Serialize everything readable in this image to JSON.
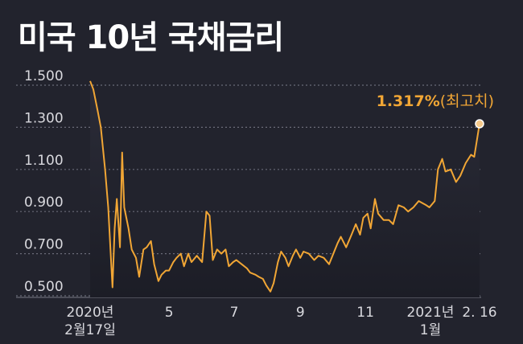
{
  "title": "미국 10년 국채금리",
  "chart_data": {
    "type": "line",
    "title": "미국 10년 국채금리",
    "ylim": [
      0.5,
      1.5
    ],
    "yticks": [
      {
        "value": 1.5,
        "label": "1.500"
      },
      {
        "value": 1.3,
        "label": "1.300"
      },
      {
        "value": 1.1,
        "label": "1.100"
      },
      {
        "value": 0.9,
        "label": "0.900"
      },
      {
        "value": 0.7,
        "label": "0.700"
      },
      {
        "value": 0.5,
        "label": "0.500"
      }
    ],
    "xlim": [
      "2020-02-17",
      "2021-02-16"
    ],
    "xticks": [
      {
        "date": "2020-02-17",
        "label": [
          "2020년",
          "2월17일"
        ]
      },
      {
        "date": "2020-05-01",
        "label": [
          "5"
        ]
      },
      {
        "date": "2020-07-01",
        "label": [
          "7"
        ]
      },
      {
        "date": "2020-09-01",
        "label": [
          "9"
        ]
      },
      {
        "date": "2020-11-01",
        "label": [
          "11"
        ]
      },
      {
        "date": "2021-01-01",
        "label": [
          "2021년",
          "1월"
        ]
      },
      {
        "date": "2021-02-16",
        "label": [
          "2. 16"
        ]
      }
    ],
    "grid": true,
    "series": [
      {
        "color": "#f1a635",
        "points": [
          [
            "2020-02-17",
            1.52
          ],
          [
            "2020-02-20",
            1.48
          ],
          [
            "2020-02-24",
            1.38
          ],
          [
            "2020-02-27",
            1.3
          ],
          [
            "2020-03-02",
            1.1
          ],
          [
            "2020-03-05",
            0.92
          ],
          [
            "2020-03-09",
            0.54
          ],
          [
            "2020-03-11",
            0.82
          ],
          [
            "2020-03-13",
            0.96
          ],
          [
            "2020-03-16",
            0.73
          ],
          [
            "2020-03-18",
            1.18
          ],
          [
            "2020-03-20",
            0.92
          ],
          [
            "2020-03-24",
            0.82
          ],
          [
            "2020-03-27",
            0.72
          ],
          [
            "2020-03-31",
            0.68
          ],
          [
            "2020-04-03",
            0.59
          ],
          [
            "2020-04-07",
            0.72
          ],
          [
            "2020-04-10",
            0.73
          ],
          [
            "2020-04-14",
            0.76
          ],
          [
            "2020-04-17",
            0.65
          ],
          [
            "2020-04-21",
            0.57
          ],
          [
            "2020-04-24",
            0.6
          ],
          [
            "2020-04-28",
            0.62
          ],
          [
            "2020-05-01",
            0.62
          ],
          [
            "2020-05-05",
            0.66
          ],
          [
            "2020-05-08",
            0.68
          ],
          [
            "2020-05-12",
            0.7
          ],
          [
            "2020-05-15",
            0.64
          ],
          [
            "2020-05-19",
            0.7
          ],
          [
            "2020-05-22",
            0.66
          ],
          [
            "2020-05-27",
            0.69
          ],
          [
            "2020-06-01",
            0.66
          ],
          [
            "2020-06-05",
            0.9
          ],
          [
            "2020-06-08",
            0.88
          ],
          [
            "2020-06-11",
            0.67
          ],
          [
            "2020-06-15",
            0.72
          ],
          [
            "2020-06-19",
            0.7
          ],
          [
            "2020-06-23",
            0.72
          ],
          [
            "2020-06-26",
            0.64
          ],
          [
            "2020-06-30",
            0.66
          ],
          [
            "2020-07-03",
            0.67
          ],
          [
            "2020-07-08",
            0.65
          ],
          [
            "2020-07-13",
            0.63
          ],
          [
            "2020-07-16",
            0.61
          ],
          [
            "2020-07-21",
            0.6
          ],
          [
            "2020-07-24",
            0.59
          ],
          [
            "2020-07-28",
            0.58
          ],
          [
            "2020-07-31",
            0.55
          ],
          [
            "2020-08-04",
            0.52
          ],
          [
            "2020-08-07",
            0.56
          ],
          [
            "2020-08-11",
            0.66
          ],
          [
            "2020-08-14",
            0.71
          ],
          [
            "2020-08-18",
            0.68
          ],
          [
            "2020-08-21",
            0.64
          ],
          [
            "2020-08-25",
            0.69
          ],
          [
            "2020-08-28",
            0.72
          ],
          [
            "2020-09-01",
            0.68
          ],
          [
            "2020-09-04",
            0.71
          ],
          [
            "2020-09-09",
            0.7
          ],
          [
            "2020-09-14",
            0.67
          ],
          [
            "2020-09-18",
            0.69
          ],
          [
            "2020-09-23",
            0.68
          ],
          [
            "2020-09-28",
            0.65
          ],
          [
            "2020-10-02",
            0.7
          ],
          [
            "2020-10-06",
            0.75
          ],
          [
            "2020-10-09",
            0.78
          ],
          [
            "2020-10-14",
            0.73
          ],
          [
            "2020-10-19",
            0.79
          ],
          [
            "2020-10-23",
            0.84
          ],
          [
            "2020-10-27",
            0.79
          ],
          [
            "2020-10-30",
            0.87
          ],
          [
            "2020-11-03",
            0.89
          ],
          [
            "2020-11-06",
            0.82
          ],
          [
            "2020-11-10",
            0.96
          ],
          [
            "2020-11-13",
            0.89
          ],
          [
            "2020-11-18",
            0.86
          ],
          [
            "2020-11-23",
            0.86
          ],
          [
            "2020-11-27",
            0.84
          ],
          [
            "2020-12-02",
            0.93
          ],
          [
            "2020-12-07",
            0.92
          ],
          [
            "2020-12-11",
            0.9
          ],
          [
            "2020-12-16",
            0.92
          ],
          [
            "2020-12-21",
            0.95
          ],
          [
            "2020-12-28",
            0.93
          ],
          [
            "2020-12-31",
            0.92
          ],
          [
            "2021-01-05",
            0.95
          ],
          [
            "2021-01-08",
            1.1
          ],
          [
            "2021-01-12",
            1.15
          ],
          [
            "2021-01-15",
            1.09
          ],
          [
            "2021-01-20",
            1.1
          ],
          [
            "2021-01-25",
            1.04
          ],
          [
            "2021-01-29",
            1.07
          ],
          [
            "2021-02-03",
            1.13
          ],
          [
            "2021-02-08",
            1.17
          ],
          [
            "2021-02-11",
            1.16
          ],
          [
            "2021-02-16",
            1.317
          ]
        ]
      }
    ],
    "annotations": [
      {
        "date": "2021-02-16",
        "value": 1.317,
        "value_text": "1.317%",
        "note": "(최고치)"
      }
    ]
  }
}
